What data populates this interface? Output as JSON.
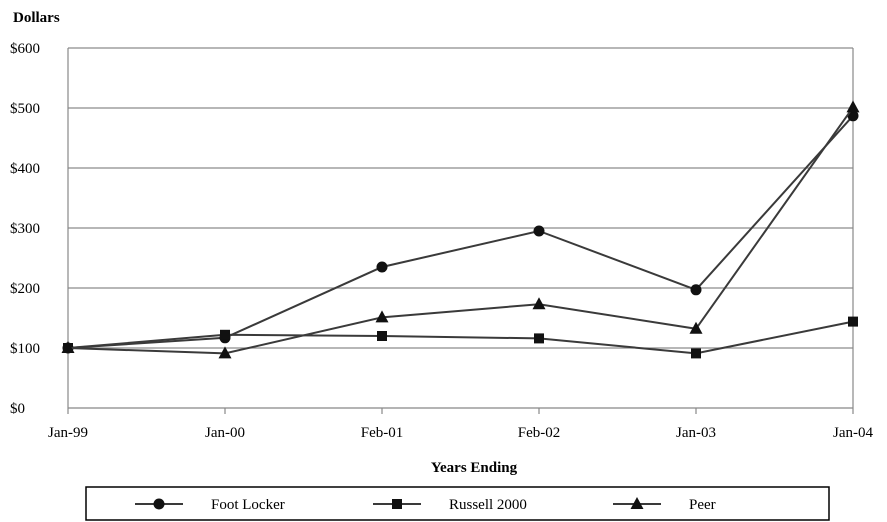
{
  "chart_data": {
    "type": "line",
    "title": "",
    "ylabel": "Dollars",
    "xlabel": "Years Ending",
    "categories": [
      "Jan-99",
      "Jan-00",
      "Feb-01",
      "Feb-02",
      "Jan-03",
      "Jan-04"
    ],
    "ylim": [
      0,
      600
    ],
    "yticks": [
      0,
      100,
      200,
      300,
      400,
      500,
      600
    ],
    "ytick_labels": [
      "$0",
      "$100",
      "$200",
      "$300",
      "$400",
      "$500",
      "$600"
    ],
    "grid": true,
    "legend_position": "bottom",
    "series": [
      {
        "name": "Foot Locker",
        "marker": "circle",
        "values": [
          100,
          117,
          235,
          295,
          197,
          487
        ]
      },
      {
        "name": "Russell 2000",
        "marker": "square",
        "values": [
          100,
          122,
          120,
          116,
          91,
          144
        ]
      },
      {
        "name": "Peer",
        "marker": "triangle",
        "values": [
          100,
          91,
          151,
          173,
          132,
          501
        ]
      }
    ],
    "colors": {
      "line": "#3a3a3a",
      "marker": "#111111",
      "grid": "#8c8c8c",
      "axis": "#888888"
    }
  }
}
